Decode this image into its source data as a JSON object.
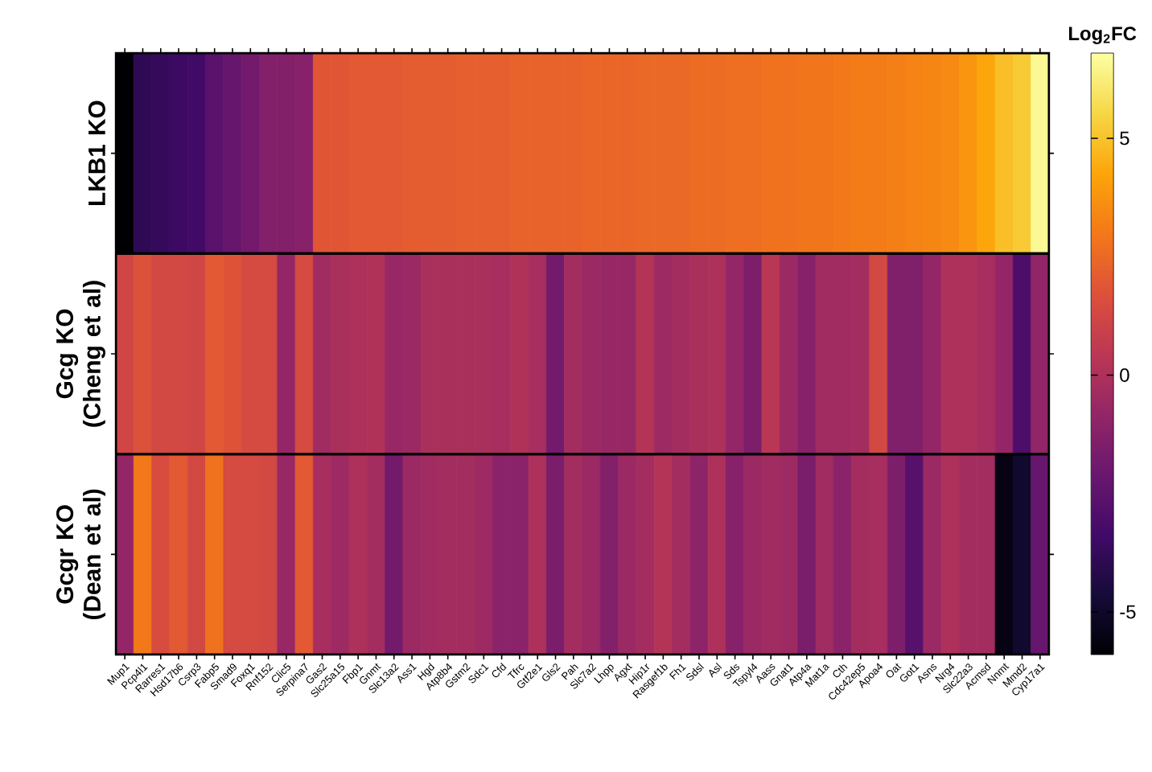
{
  "chart_data": {
    "type": "heatmap",
    "clabel": "Log$_{2}$FC",
    "categories": [
      "Mup1",
      "Pcp4l1",
      "Rarres1",
      "Hsd17b6",
      "Csrp3",
      "Fabp5",
      "Smad9",
      "Foxq1",
      "Rnf152",
      "Clic5",
      "Serpina7",
      "Gas2",
      "Slc25a15",
      "Fbp1",
      "Gnmt",
      "Slc13a2",
      "Ass1",
      "Hgd",
      "Atp8b4",
      "Gstm2",
      "Sdc1",
      "Cfd",
      "Tfrc",
      "Gtf2e1",
      "Gls2",
      "Pah",
      "Slc7a2",
      "Lhpp",
      "Agxt",
      "Hip1r",
      "Rasgef1b",
      "Fh1",
      "Sdsl",
      "Asl",
      "Sds",
      "Tspyl4",
      "Aass",
      "Gnat1",
      "Atp4a",
      "Mat1a",
      "Cth",
      "Cdc42ep5",
      "Apoa4",
      "Oat",
      "Got1",
      "Asns",
      "Nrg4",
      "Slc22a3",
      "Acmsd",
      "Nnmt",
      "Mmd2",
      "Cyp17a1"
    ],
    "y_categories": [
      "LKB1 KO",
      "Gcg KO (Cheng et al)",
      "Gcgr KO (Dean et al)"
    ],
    "cells": [
      [
        -5.9,
        -3.9,
        -3.7,
        -3.5,
        -3.4,
        -2.6,
        -2.2,
        -1.8,
        -1.3,
        -1.3,
        -1.2,
        1.9,
        1.9,
        2.0,
        2.0,
        2.0,
        2.1,
        2.1,
        2.1,
        2.2,
        2.2,
        2.2,
        2.3,
        2.3,
        2.3,
        2.3,
        2.4,
        2.4,
        2.4,
        2.5,
        2.5,
        2.5,
        2.6,
        2.6,
        2.7,
        2.7,
        2.8,
        2.8,
        2.9,
        2.9,
        3.0,
        3.1,
        3.1,
        3.2,
        3.3,
        3.4,
        3.5,
        3.8,
        4.3,
        4.9,
        5.2,
        6.6
      ],
      [
        1.2,
        1.7,
        1.3,
        1.3,
        1.2,
        2.0,
        1.8,
        1.4,
        1.4,
        -0.8,
        1.4,
        -0.4,
        -0.1,
        0.0,
        0.1,
        -0.7,
        -0.6,
        -0.1,
        -0.1,
        -0.1,
        -0.1,
        -0.2,
        0.1,
        -0.2,
        -1.8,
        -0.3,
        -0.6,
        -0.7,
        -0.7,
        0.2,
        -0.5,
        -0.3,
        -0.1,
        0.0,
        -0.8,
        -1.5,
        0.4,
        -0.6,
        -1.2,
        -0.4,
        -0.4,
        -0.3,
        1.3,
        -1.4,
        -1.4,
        -0.8,
        0.0,
        0.0,
        -0.2,
        -0.8,
        -3.0,
        -0.9
      ],
      [
        -0.8,
        3.0,
        1.5,
        2.0,
        1.3,
        2.8,
        1.4,
        1.4,
        1.3,
        -0.7,
        2.0,
        -0.2,
        -0.5,
        0.0,
        -0.3,
        -1.8,
        -0.6,
        -0.4,
        -0.3,
        -0.3,
        -0.5,
        -1.1,
        -1.1,
        0.0,
        -1.6,
        -0.3,
        -0.6,
        -1.3,
        -0.6,
        -0.3,
        0.2,
        -0.3,
        -1.0,
        0.0,
        -1.2,
        -0.6,
        -0.4,
        -0.5,
        -1.6,
        -0.4,
        -1.1,
        -0.3,
        -0.2,
        -1.5,
        -2.7,
        -0.6,
        0.0,
        -0.3,
        -0.3,
        -5.5,
        -4.9,
        -2.2
      ]
    ],
    "clim": [
      -5.9,
      6.8
    ],
    "cticks": [
      -5,
      0,
      5
    ]
  }
}
